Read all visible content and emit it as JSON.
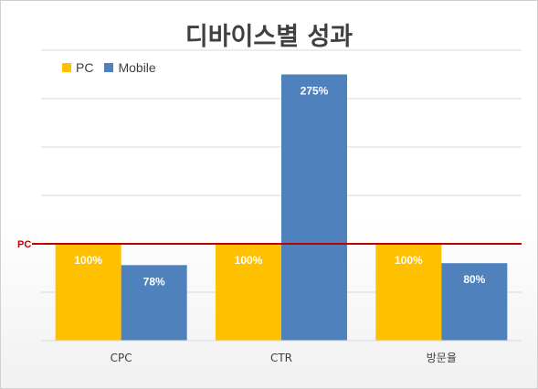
{
  "chart_data": {
    "type": "bar",
    "title": "디바이스별 성과",
    "categories": [
      "CPC",
      "CTR",
      "방문율"
    ],
    "series": [
      {
        "name": "PC",
        "values": [
          100,
          100,
          100
        ],
        "labels": [
          "100%",
          "100%",
          "100%"
        ],
        "color": "#FFC000"
      },
      {
        "name": "Mobile",
        "values": [
          78,
          275,
          80
        ],
        "labels": [
          "78%",
          "275%",
          "80%"
        ],
        "color": "#4F81BD"
      }
    ],
    "ylim": [
      0,
      300
    ],
    "grid": true,
    "legend_position": "top-left",
    "reference_line": {
      "label": "PC",
      "value": 100,
      "color": "#C00000"
    }
  }
}
